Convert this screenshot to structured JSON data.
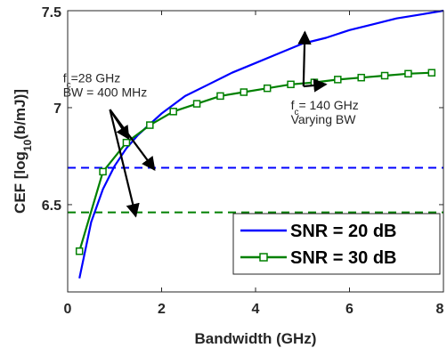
{
  "chart_data": {
    "type": "line",
    "title": "",
    "xlabel": "Bandwidth (GHz)",
    "ylabel": "CEF [log10(b/mJ)]",
    "xlim": [
      0,
      8
    ],
    "ylim": [
      6.05,
      7.5
    ],
    "xticks": [
      0,
      2,
      4,
      6,
      8
    ],
    "yticks": [
      6.5,
      7,
      7.5
    ],
    "grid": false,
    "legend_position": "bottom-right",
    "series": [
      {
        "name": "SNR = 20 dB",
        "color": "#0000ff",
        "style": "solid",
        "marker": "none",
        "x": [
          0.25,
          0.5,
          0.75,
          1.0,
          1.25,
          1.5,
          2.0,
          2.5,
          3.0,
          3.5,
          4.0,
          4.5,
          5.0,
          5.5,
          6.0,
          6.5,
          7.0,
          7.5,
          8.0
        ],
        "y": [
          6.12,
          6.41,
          6.58,
          6.7,
          6.79,
          6.86,
          6.97,
          7.06,
          7.12,
          7.18,
          7.23,
          7.28,
          7.33,
          7.36,
          7.4,
          7.43,
          7.46,
          7.48,
          7.5
        ]
      },
      {
        "name": "SNR = 30 dB",
        "color": "#008000",
        "style": "solid",
        "marker": "square",
        "x": [
          0.25,
          0.75,
          1.25,
          1.75,
          2.25,
          2.75,
          3.25,
          3.75,
          4.25,
          4.75,
          5.25,
          5.75,
          6.25,
          6.75,
          7.25,
          7.75
        ],
        "y": [
          6.26,
          6.67,
          6.82,
          6.91,
          6.98,
          7.02,
          7.06,
          7.08,
          7.1,
          7.12,
          7.13,
          7.145,
          7.155,
          7.165,
          7.175,
          7.18
        ]
      },
      {
        "name": "",
        "color": "#0000ff",
        "style": "dashed",
        "marker": "none",
        "x": [
          0,
          8
        ],
        "y": [
          6.69,
          6.69
        ]
      },
      {
        "name": "",
        "color": "#008000",
        "style": "dashed",
        "marker": "none",
        "x": [
          0,
          8
        ],
        "y": [
          6.46,
          6.46
        ]
      }
    ],
    "annotations": [
      {
        "lines": [
          "f_c=28 GHz",
          "BW = 400 MHz"
        ],
        "anchor": {
          "x": -0.1,
          "y": 7.13
        },
        "arrows_to": [
          {
            "x": 1.3,
            "y": 6.84
          },
          {
            "x": 1.85,
            "y": 6.68
          },
          {
            "x": 1.45,
            "y": 6.44
          }
        ],
        "arrow_from": {
          "x": 0.9,
          "y": 6.99
        }
      },
      {
        "lines": [
          "f_c= 140 GHz",
          "Varying BW"
        ],
        "anchor": {
          "x": 4.75,
          "y": 6.99
        },
        "arrows_to": [
          {
            "x": 5.05,
            "y": 7.39
          },
          {
            "x": 5.5,
            "y": 7.12
          }
        ],
        "arrow_from": {
          "x": 5.02,
          "y": 7.11
        }
      }
    ]
  }
}
